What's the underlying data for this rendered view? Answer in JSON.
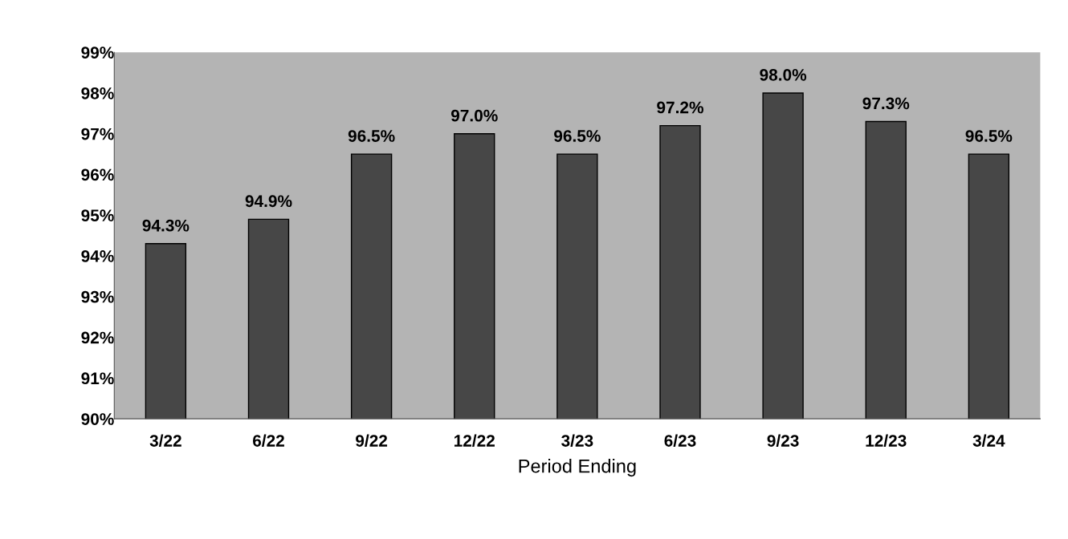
{
  "chart_data": {
    "type": "bar",
    "xlabel": "Period Ending",
    "categories": [
      "3/22",
      "6/22",
      "9/22",
      "12/22",
      "3/23",
      "6/23",
      "9/23",
      "12/23",
      "3/24"
    ],
    "values": [
      94.3,
      94.9,
      96.5,
      97.0,
      96.5,
      97.2,
      98.0,
      97.3,
      96.5
    ],
    "value_labels": [
      "94.3%",
      "94.9%",
      "96.5%",
      "97.0%",
      "96.5%",
      "97.2%",
      "98.0%",
      "97.3%",
      "96.5%"
    ],
    "color": "#474747",
    "ylim": [
      90,
      99
    ],
    "yticks": [
      {
        "value": 90,
        "label": "90%"
      },
      {
        "value": 91,
        "label": "91%"
      },
      {
        "value": 92,
        "label": "92%"
      },
      {
        "value": 93,
        "label": "93%"
      },
      {
        "value": 94,
        "label": "94%"
      },
      {
        "value": 95,
        "label": "95%"
      },
      {
        "value": 96,
        "label": "96%"
      },
      {
        "value": 97,
        "label": "97%"
      },
      {
        "value": 98,
        "label": "98%"
      },
      {
        "value": 99,
        "label": "99%"
      }
    ],
    "grid": false,
    "legend": false
  }
}
